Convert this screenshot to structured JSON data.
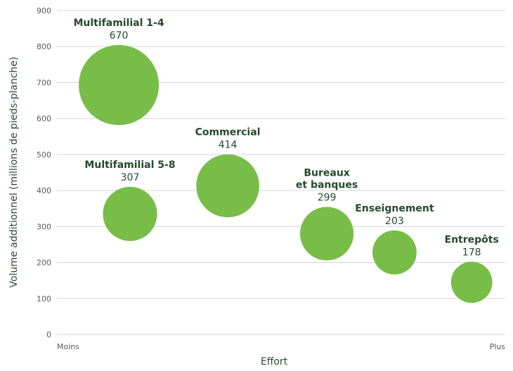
{
  "chart_data": {
    "type": "scatter",
    "subtype": "bubble",
    "title": "",
    "xlabel": "Effort",
    "ylabel": "Volume additionnel (millions de pieds-planche)",
    "x_tick_labels": {
      "min": "Moins",
      "max": "Plus"
    },
    "xlim": [
      0,
      10
    ],
    "ylim": [
      0,
      900
    ],
    "y_ticks": [
      0,
      100,
      200,
      300,
      400,
      500,
      600,
      700,
      800,
      900
    ],
    "grid": true,
    "legend": "none",
    "bubble_color": "#78bd47",
    "label_color": "#234a2b",
    "points": [
      {
        "label": [
          "Multifamilial 1-4"
        ],
        "value": "670",
        "x": 1.38,
        "y": 693,
        "size": 670
      },
      {
        "label": [
          "Multifamilial 5-8"
        ],
        "value": "307",
        "x": 1.63,
        "y": 335,
        "size": 307
      },
      {
        "label": [
          "Commercial"
        ],
        "value": "414",
        "x": 3.81,
        "y": 413,
        "size": 414
      },
      {
        "label": [
          "Bureaux",
          "et banques"
        ],
        "value": "299",
        "x": 6.02,
        "y": 280,
        "size": 299
      },
      {
        "label": [
          "Enseignement"
        ],
        "value": "203",
        "x": 7.53,
        "y": 228,
        "size": 203
      },
      {
        "label": [
          "Entrepôts"
        ],
        "value": "178",
        "x": 9.25,
        "y": 145,
        "size": 178
      }
    ]
  }
}
